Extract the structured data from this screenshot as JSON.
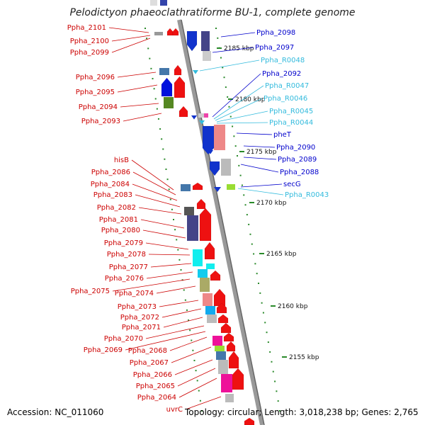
{
  "title": "Pelodictyon phaeoclathratiforme BU-1, complete genome",
  "footer": {
    "accession": "Accession: NC_011060",
    "stats": "Topology: circular; Length: 3,018,238 bp; Genes: 2,765"
  },
  "colors": {
    "left_label": "#cc0000",
    "right_label_gene": "#0000cc",
    "right_label_rna": "#33bbdd",
    "backbone": "#888888",
    "tick_green": "#2a8a2a"
  },
  "kbp_ticks": [
    "2185 kbp",
    "2180 kbp",
    "2175 kbp",
    "2170 kbp",
    "2165 kbp",
    "2160 kbp",
    "2155 kbp"
  ],
  "left_labels": [
    "Ppha_2101",
    "Ppha_2100",
    "Ppha_2099",
    "Ppha_2096",
    "Ppha_2095",
    "Ppha_2094",
    "Ppha_2093",
    "hisB",
    "Ppha_2086",
    "Ppha_2084",
    "Ppha_2083",
    "Ppha_2082",
    "Ppha_2081",
    "Ppha_2080",
    "Ppha_2079",
    "Ppha_2078",
    "Ppha_2077",
    "Ppha_2076",
    "Ppha_2075",
    "Ppha_2074",
    "Ppha_2073",
    "Ppha_2072",
    "Ppha_2071",
    "Ppha_2070",
    "Ppha_2069",
    "Ppha_2068",
    "Ppha_2067",
    "Ppha_2066",
    "Ppha_2065",
    "Ppha_2064",
    "uvrC"
  ],
  "right_labels": [
    {
      "text": "Ppha_2098",
      "type": "gene"
    },
    {
      "text": "Ppha_2097",
      "type": "gene"
    },
    {
      "text": "Ppha_R0048",
      "type": "rna"
    },
    {
      "text": "Ppha_2092",
      "type": "gene"
    },
    {
      "text": "Ppha_R0047",
      "type": "rna"
    },
    {
      "text": "Ppha_R0046",
      "type": "rna"
    },
    {
      "text": "Ppha_R0045",
      "type": "rna"
    },
    {
      "text": "Ppha_R0044",
      "type": "rna"
    },
    {
      "text": "pheT",
      "type": "gene"
    },
    {
      "text": "Ppha_2090",
      "type": "gene"
    },
    {
      "text": "Ppha_2089",
      "type": "gene"
    },
    {
      "text": "Ppha_2088",
      "type": "gene"
    },
    {
      "text": "secG",
      "type": "gene"
    },
    {
      "text": "Ppha_R0043",
      "type": "rna"
    }
  ]
}
